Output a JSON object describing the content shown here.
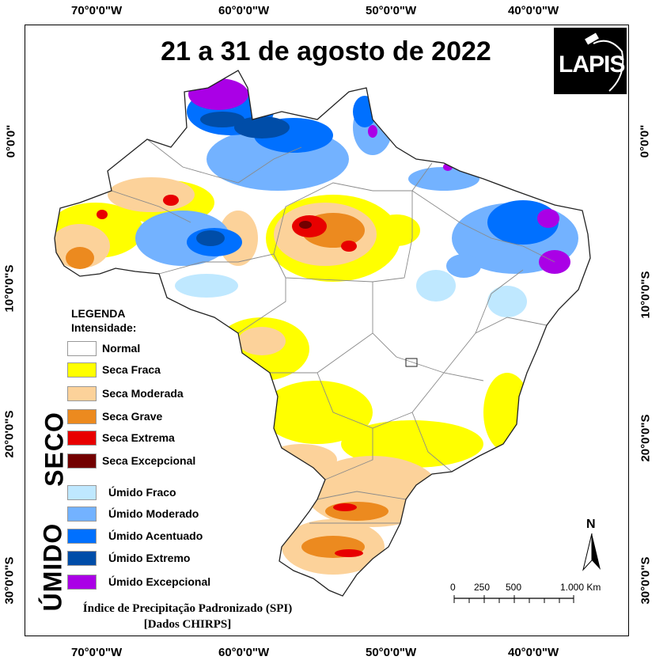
{
  "title": "21 a 31 de agosto de 2022",
  "logo_text": "LAPIS",
  "axis_ticks": {
    "top": [
      "70°0'0\"W",
      "60°0'0\"W",
      "50°0'0\"W",
      "40°0'0\"W"
    ],
    "bottom": [
      "70°0'0\"W",
      "60°0'0\"W",
      "50°0'0\"W",
      "40°0'0\"W"
    ],
    "left": [
      "0°0'0\"",
      "10°0'0\"S",
      "20°0'0\"S",
      "30°0'0\"S"
    ],
    "right": [
      "0°0'0\"",
      "10°0'0\"S",
      "20°0'0\"S",
      "30°0'0\"S"
    ]
  },
  "legend": {
    "header": "LEGENDA",
    "subheader": "Intensidade:",
    "dry_group": "SECO",
    "wet_group": "ÚMIDO",
    "dry_items": [
      {
        "label": "Normal",
        "color": "#ffffff"
      },
      {
        "label": "Seca Fraca",
        "color": "#ffff00"
      },
      {
        "label": "Seca Moderada",
        "color": "#fcd29a"
      },
      {
        "label": "Seca Grave",
        "color": "#ec8a1f"
      },
      {
        "label": "Seca Extrema",
        "color": "#e80000"
      },
      {
        "label": "Seca Excepcional",
        "color": "#730000"
      }
    ],
    "wet_items": [
      {
        "label": "Úmido Fraco",
        "color": "#bfe8ff"
      },
      {
        "label": "Úmido Moderado",
        "color": "#73b2ff"
      },
      {
        "label": "Úmido Acentuado",
        "color": "#0070ff"
      },
      {
        "label": "Úmido Extremo",
        "color": "#004da8"
      },
      {
        "label": "Úmido Excepcional",
        "color": "#aa00e6"
      }
    ]
  },
  "caption_line1": "Índice de Precipitação Padronizado (SPI)",
  "caption_line2": "[Dados CHIRPS]",
  "north_label": "N",
  "scale_bar": {
    "labels": [
      "0",
      "250",
      "500",
      "1.000 Km"
    ]
  }
}
